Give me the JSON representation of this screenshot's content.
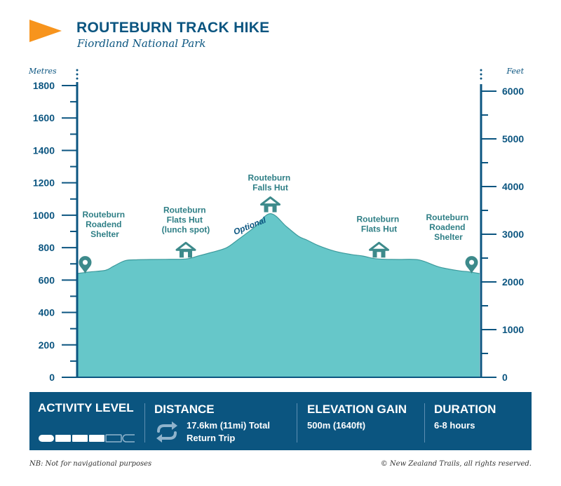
{
  "header": {
    "title": "ROUTEBURN TRACK HIKE",
    "subtitle": "Fiordland National Park"
  },
  "colors": {
    "primary": "#0b5580",
    "fill": "#66c7c9",
    "accent_orange": "#f7941d",
    "marker": "#3d8a8b"
  },
  "chart_data": {
    "type": "area",
    "ylabel": "Metres",
    "ylabel_right": "Feet",
    "ylim": [
      0,
      1800
    ],
    "ylim_right_ft": [
      0,
      6000
    ],
    "yticks": [
      0,
      200,
      400,
      600,
      800,
      1000,
      1200,
      1400,
      1600,
      1800
    ],
    "yticks_right": [
      0,
      1000,
      2000,
      3000,
      4000,
      5000,
      6000
    ],
    "xlim": [
      0,
      100
    ],
    "x": [
      0,
      3,
      7,
      9,
      12,
      15,
      18,
      22,
      27,
      30,
      33,
      37,
      40,
      44,
      48,
      52,
      55,
      57,
      60,
      64,
      68,
      71,
      74,
      77,
      80,
      85,
      90,
      95,
      97,
      100
    ],
    "values": [
      640,
      650,
      660,
      685,
      720,
      725,
      727,
      728,
      730,
      748,
      768,
      798,
      850,
      925,
      1010,
      930,
      870,
      848,
      812,
      778,
      758,
      748,
      732,
      728,
      727,
      724,
      680,
      657,
      652,
      640
    ],
    "annotations": [
      {
        "label": "Routeburn Roadend Shelter",
        "icon": "location-pin-icon",
        "x": 2,
        "y": 640
      },
      {
        "label": "Routeburn Flats Hut (lunch spot)",
        "icon": "hut-icon",
        "x": 27,
        "y": 730
      },
      {
        "label": "Routeburn Falls Hut",
        "icon": "hut-icon",
        "x": 48,
        "y": 1010
      },
      {
        "label": "Routeburn Flats Hut",
        "icon": "hut-icon",
        "x": 75,
        "y": 730
      },
      {
        "label": "Routeburn Roadend Shelter",
        "icon": "location-pin-icon",
        "x": 98,
        "y": 640
      }
    ],
    "optional_label": "Optional",
    "grid": false,
    "legend": "none"
  },
  "stats": {
    "activity_level_label": "ACTIVITY LEVEL",
    "activity_level_segments_filled": 4,
    "activity_level_segments_total": 6,
    "distance_label": "DISTANCE",
    "distance_value": "17.6km (11mi) Total Return Trip",
    "distance_icon": "return-trip-icon",
    "elevation_label": "ELEVATION GAIN",
    "elevation_value": "500m (1640ft)",
    "duration_label": "DURATION",
    "duration_value": "6-8 hours"
  },
  "footer": {
    "note": "NB: Not for navigational purposes",
    "copyright": "© New Zealand Trails, all rights reserved."
  }
}
